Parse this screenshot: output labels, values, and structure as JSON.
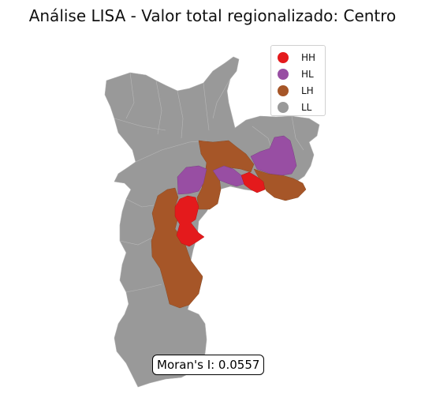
{
  "title": "Análise LISA - Valor total regionalizado: Centro",
  "legend": [
    {
      "label": "HH",
      "color": "#e41a1c"
    },
    {
      "label": "HL",
      "color": "#984ea3"
    },
    {
      "label": "LH",
      "color": "#a65628"
    },
    {
      "label": "LL",
      "color": "#999999"
    }
  ],
  "moran": "Moran's I: 0.0557",
  "colors": {
    "HH": "#e41a1c",
    "HL": "#984ea3",
    "LH": "#a65628",
    "LL": "#999999",
    "border": "#b8b8b8"
  }
}
